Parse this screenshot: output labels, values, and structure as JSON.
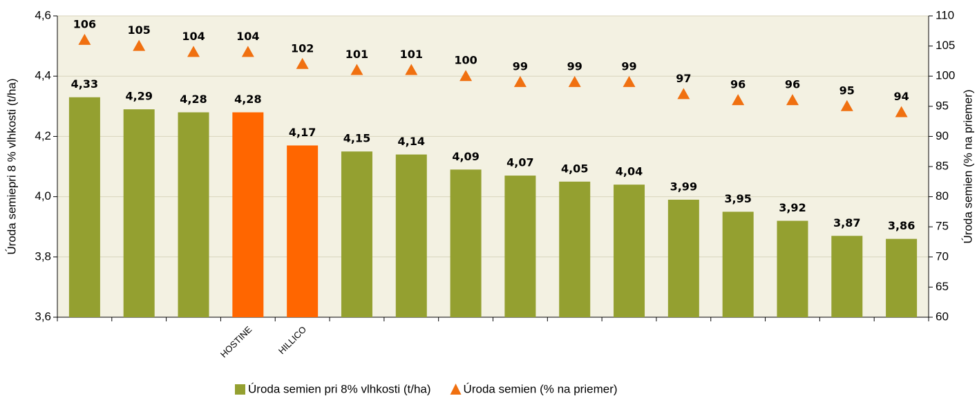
{
  "chart_data": {
    "type": "bar",
    "categories": [
      null,
      null,
      null,
      "HOSTINE",
      "HILLICO",
      null,
      null,
      null,
      null,
      null,
      null,
      null,
      null,
      null,
      null,
      null
    ],
    "ylabel": "Úroda semiepri 8 % vlhkosti (t/ha)",
    "y2label": "Úroda semien  (% na priemer)",
    "ylim": [
      3.6,
      4.6
    ],
    "yticks": [
      {
        "value": 3.6,
        "label": "3,6"
      },
      {
        "value": 3.8,
        "label": "3,8"
      },
      {
        "value": 4.0,
        "label": "4,0"
      },
      {
        "value": 4.2,
        "label": "4,2"
      },
      {
        "value": 4.4,
        "label": "4,4"
      },
      {
        "value": 4.6,
        "label": "4,6"
      }
    ],
    "y2lim": [
      60,
      110
    ],
    "y2ticks": [
      60,
      65,
      70,
      75,
      80,
      85,
      90,
      95,
      100,
      105,
      110
    ],
    "grid": true,
    "legend": "bottom",
    "series": [
      {
        "name": "Úroda semien pri 8% vlhkosti (t/ha)",
        "type": "bar",
        "color": "#94a030",
        "colors": [
          "#94a030",
          "#94a030",
          "#94a030",
          "#ff6600",
          "#ff6600",
          "#94a030",
          "#94a030",
          "#94a030",
          "#94a030",
          "#94a030",
          "#94a030",
          "#94a030",
          "#94a030",
          "#94a030",
          "#94a030",
          "#94a030"
        ],
        "values": [
          4.33,
          4.29,
          4.28,
          4.28,
          4.17,
          4.15,
          4.14,
          4.09,
          4.07,
          4.05,
          4.04,
          3.99,
          3.95,
          3.92,
          3.87,
          3.86
        ],
        "value_labels": [
          "4,33",
          "4,29",
          "4,28",
          "4,28",
          "4,17",
          "4,15",
          "4,14",
          "4,09",
          "4,07",
          "4,05",
          "4,04",
          "3,99",
          "3,95",
          "3,92",
          "3,87",
          "3,86"
        ]
      },
      {
        "name": "Úroda semien (% na priemer)",
        "type": "scatter",
        "axis": "y2",
        "color": "#f07010",
        "values": [
          106,
          105,
          104,
          104,
          102,
          101,
          101,
          100,
          99,
          99,
          99,
          97,
          96,
          96,
          95,
          94
        ]
      }
    ]
  }
}
